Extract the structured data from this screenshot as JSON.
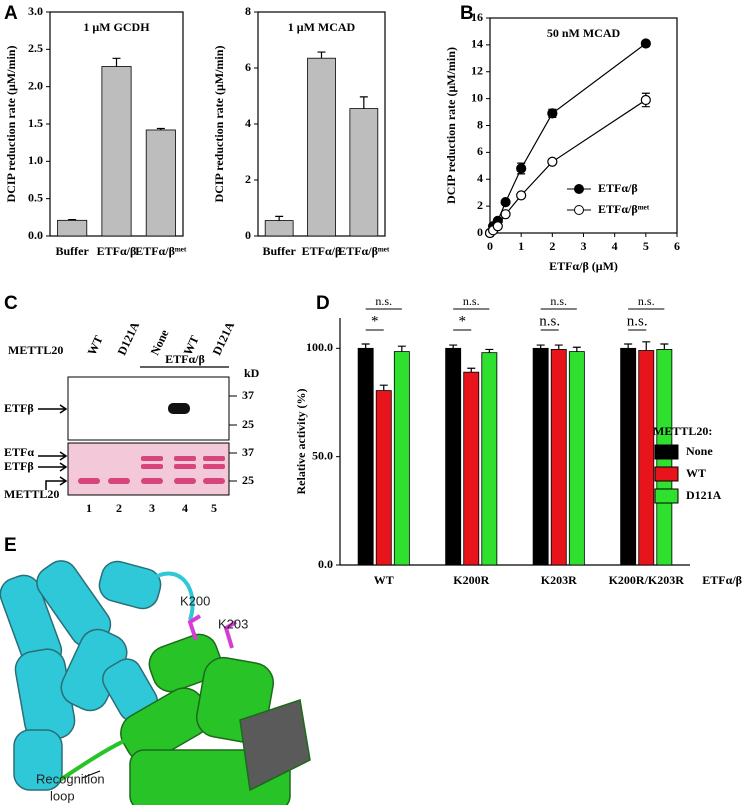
{
  "panel_labels": [
    "A",
    "B",
    "C",
    "D",
    "E"
  ],
  "chart_data": [
    {
      "type": "bar",
      "title": "1 μM GCDH",
      "ylabel": "DCIP reduction rate (μM/min)",
      "categories": [
        "Buffer",
        "ETFα/β",
        "ETFα/βᵐᵉᵗ"
      ],
      "values": [
        0.21,
        2.27,
        1.42
      ],
      "errors": [
        0.01,
        0.11,
        0.02
      ],
      "color": "#bdbdbd",
      "ylim": [
        0,
        3
      ],
      "yticks": [
        {
          "value": 0,
          "label": "0.0"
        },
        0.5,
        {
          "value": 1,
          "label": "1.0"
        },
        1.5,
        {
          "value": 2,
          "label": "2.0"
        },
        2.5,
        {
          "value": 3,
          "label": "3.0"
        }
      ]
    },
    {
      "type": "bar",
      "title": "1 μM MCAD",
      "ylabel": "DCIP reduction rate (μM/min)",
      "categories": [
        "Buffer",
        "ETFα/β",
        "ETFα/βᵐᵉᵗ"
      ],
      "values": [
        0.55,
        6.35,
        4.55
      ],
      "errors": [
        0.15,
        0.22,
        0.42
      ],
      "color": "#bdbdbd",
      "ylim": [
        0,
        8
      ],
      "yticks": [
        0,
        2,
        4,
        6,
        8
      ]
    },
    {
      "type": "line",
      "title": "50 nM MCAD",
      "xlabel": "ETFα/β (μM)",
      "ylabel": "DCIP reduction rate (μM/min)",
      "x": [
        0,
        0.1,
        0.25,
        0.5,
        1,
        2,
        5
      ],
      "series": [
        {
          "name": "ETFα/β",
          "color": "#000000",
          "fill": "#000000",
          "values": [
            0,
            0.5,
            0.9,
            2.3,
            4.8,
            8.9,
            14.1
          ],
          "errors": [
            0.05,
            0.1,
            0.1,
            0.15,
            0.4,
            0.3,
            0.2
          ]
        },
        {
          "name": "ETFα/βᵐᵉᵗ",
          "color": "#000000",
          "fill": "#ffffff",
          "values": [
            0,
            0.2,
            0.5,
            1.4,
            2.8,
            5.3,
            9.9
          ],
          "errors": [
            0.05,
            0.05,
            0.05,
            0.1,
            0.1,
            0.2,
            0.5
          ]
        }
      ],
      "xlim": [
        0,
        6
      ],
      "xticks": [
        0,
        1,
        2,
        3,
        4,
        5,
        6
      ],
      "ylim": [
        0,
        16
      ],
      "yticks": [
        0,
        2,
        4,
        6,
        8,
        10,
        12,
        14,
        16
      ],
      "legend": "lower right"
    },
    {
      "type": "bar",
      "ylabel": "Relative activity (%)",
      "xlabel": "ETFα/β",
      "legend_title": "METTL20:",
      "categories": [
        "WT",
        "K200R",
        "K203R",
        "K200R/K203R"
      ],
      "series": [
        {
          "name": "None",
          "color": "#000000",
          "values": [
            100,
            100,
            100,
            100
          ],
          "errors": [
            2,
            1.5,
            1.5,
            2
          ]
        },
        {
          "name": "WT",
          "color": "#e8141c",
          "values": [
            80.5,
            89,
            99.5,
            99
          ],
          "errors": [
            2.5,
            1.8,
            2,
            4
          ]
        },
        {
          "name": "D121A",
          "color": "#2fe02f",
          "values": [
            98.5,
            98,
            98.5,
            99.5
          ],
          "errors": [
            2.5,
            1.5,
            2,
            2.5
          ]
        }
      ],
      "significance": [
        [
          "n.s.",
          "*"
        ],
        [
          "n.s.",
          "*"
        ],
        [
          "n.s.",
          "n.s."
        ],
        [
          "n.s.",
          "n.s."
        ]
      ],
      "ylim": [
        0,
        114
      ],
      "yticks": [
        {
          "value": 0,
          "label": "0.0"
        },
        {
          "value": 50,
          "label": "50.0"
        },
        {
          "value": 100,
          "label": "100.0"
        }
      ]
    }
  ],
  "gel": {
    "row_label": "METTL20",
    "lanes": [
      "WT",
      "D121A",
      "None",
      "WT",
      "D121A"
    ],
    "group_label": "ETFα/β",
    "unit": "kD",
    "top_markers": [
      "37",
      "25"
    ],
    "bottom_markers": [
      "37",
      "25"
    ],
    "top_bands": [
      "ETFβ"
    ],
    "bottom_bands": [
      "ETFα",
      "ETFβ",
      "METTL20"
    ],
    "lane_numbers": [
      "1",
      "2",
      "3",
      "4",
      "5"
    ]
  },
  "structure": {
    "residues": [
      "K200",
      "K203"
    ],
    "annotation": [
      "Recognition",
      "loop"
    ]
  }
}
